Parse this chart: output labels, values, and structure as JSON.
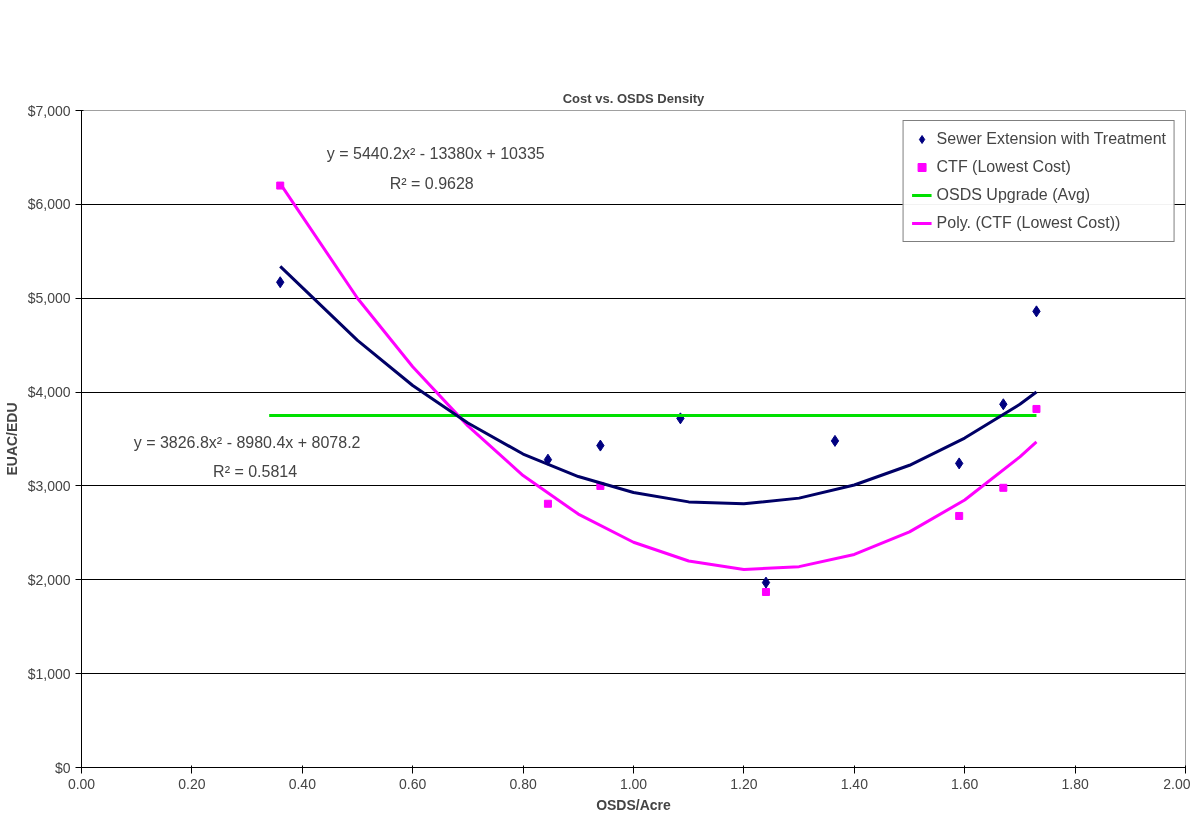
{
  "chart_data": {
    "type": "scatter",
    "title": "Cost vs. OSDS Density",
    "xlabel": "OSDS/Acre",
    "ylabel": "EUAC/EDU",
    "xlim": [
      0,
      2
    ],
    "xticks": [
      {
        "value": 0,
        "label": "0.00"
      },
      {
        "value": 0.2,
        "label": "0.20"
      },
      {
        "value": 0.4,
        "label": "0.40"
      },
      {
        "value": 0.6,
        "label": "0.60"
      },
      {
        "value": 0.8,
        "label": "0.80"
      },
      {
        "value": 1.0,
        "label": "1.00"
      },
      {
        "value": 1.2,
        "label": "1.20"
      },
      {
        "value": 1.4,
        "label": "1.40"
      },
      {
        "value": 1.6,
        "label": "1.60"
      },
      {
        "value": 1.8,
        "label": "1.80"
      },
      {
        "value": 2.0,
        "label": "2.00"
      }
    ],
    "ylim": [
      0,
      7000
    ],
    "yticks": [
      {
        "value": 0,
        "label": "$0"
      },
      {
        "value": 1000,
        "label": "$1,000"
      },
      {
        "value": 2000,
        "label": "$2,000"
      },
      {
        "value": 3000,
        "label": "$3,000"
      },
      {
        "value": 4000,
        "label": "$4,000"
      },
      {
        "value": 5000,
        "label": "$5,000"
      },
      {
        "value": 6000,
        "label": "$6,000"
      },
      {
        "value": 7000,
        "label": "$7,000"
      }
    ],
    "grid": "y",
    "legend": "top right",
    "series": [
      {
        "name": "Sewer Extension with Treatment",
        "marker": "diamond",
        "color": "#000080",
        "x": [
          0.36,
          0.845,
          0.94,
          1.085,
          1.24,
          1.365,
          1.59,
          1.67,
          1.73
        ],
        "values": [
          5170,
          3280,
          3430,
          3720,
          1970,
          3480,
          3240,
          3870,
          4860
        ]
      },
      {
        "name": "CTF (Lowest Cost)",
        "marker": "square",
        "color": "#ff00ff",
        "x": [
          0.36,
          0.845,
          0.94,
          1.24,
          1.59,
          1.67,
          1.73
        ],
        "values": [
          6200,
          2810,
          3000,
          1870,
          2680,
          2980,
          3820
        ]
      },
      {
        "name": "OSDS Upgrade (Avg)",
        "type": "line",
        "marker": "none",
        "color": "#00e000",
        "x": [
          0.34,
          1.73
        ],
        "values": [
          3750,
          3750
        ]
      },
      {
        "name": "Poly. (CTF (Lowest Cost))",
        "type": "line",
        "marker": "none",
        "color": "#ff00ff",
        "x": [
          0.36,
          0.5,
          0.6,
          0.7,
          0.8,
          0.9,
          1.0,
          1.1,
          1.2,
          1.3,
          1.4,
          1.5,
          1.6,
          1.7,
          1.73
        ],
        "values": [
          6220,
          5000,
          4270,
          3640,
          3110,
          2700,
          2400,
          2200,
          2110,
          2140,
          2270,
          2510,
          2850,
          3310,
          3470
        ]
      },
      {
        "type": "line",
        "marker": "none",
        "color": "#000066",
        "x": [
          0.36,
          0.5,
          0.6,
          0.7,
          0.8,
          0.9,
          1.0,
          1.1,
          1.2,
          1.3,
          1.4,
          1.5,
          1.6,
          1.7,
          1.73
        ],
        "values": [
          5340,
          4550,
          4070,
          3670,
          3340,
          3100,
          2930,
          2830,
          2810,
          2870,
          3010,
          3220,
          3510,
          3870,
          4000
        ]
      }
    ],
    "annotations": [
      "y = 5440.2x² - 13380x + 10335",
      "R² = 0.9628",
      "y = 3826.8x² - 8980.4x + 8078.2",
      "R² = 0.5814"
    ]
  }
}
